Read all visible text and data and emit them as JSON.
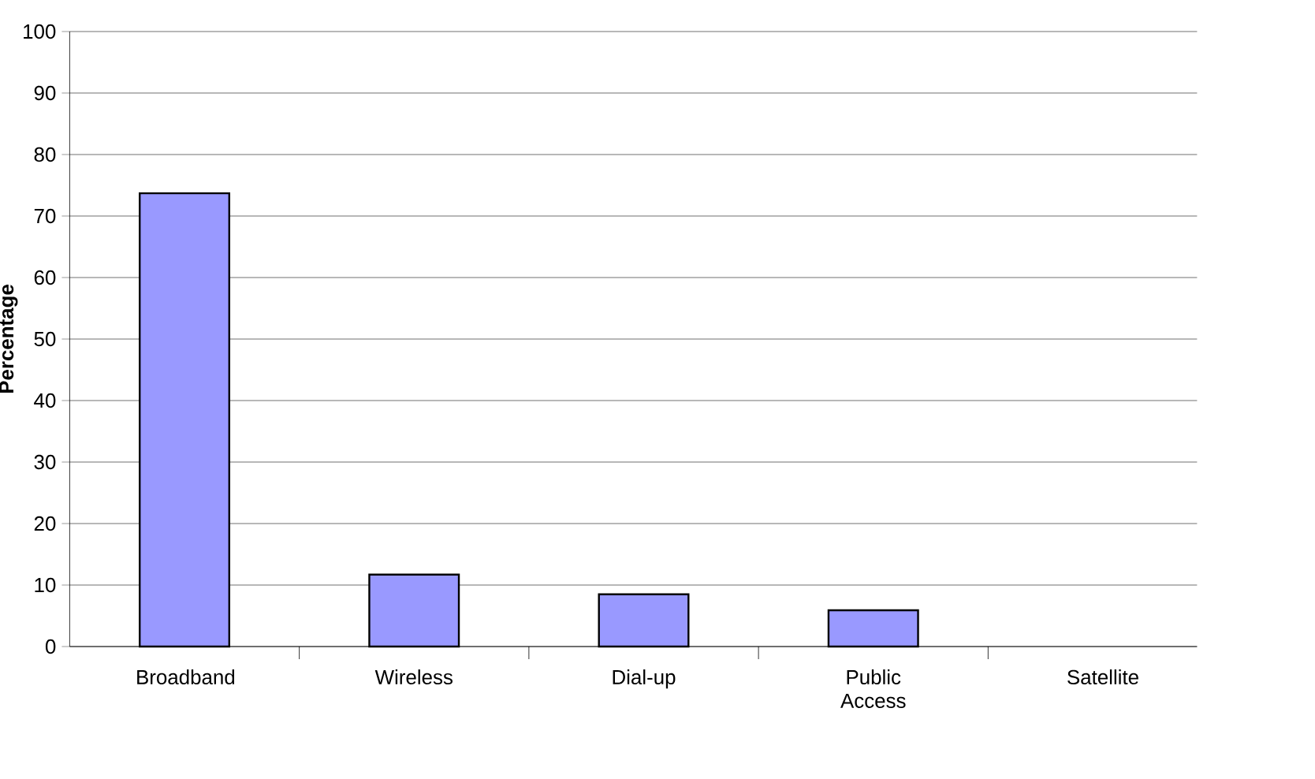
{
  "chart_data": {
    "type": "bar",
    "ylabel": "Percentage",
    "categories": [
      "Broadband",
      "Wireless",
      "Dial-up",
      "Public Access",
      "Satellite"
    ],
    "values": [
      73.7,
      11.7,
      8.5,
      5.9,
      0
    ],
    "color": "#9999ff",
    "ylim": [
      0,
      100
    ],
    "yticks": [
      0,
      10,
      20,
      30,
      40,
      50,
      60,
      70,
      80,
      90,
      100
    ],
    "grid": "y"
  }
}
